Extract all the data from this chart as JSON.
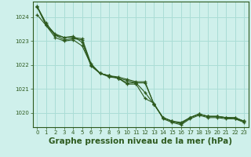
{
  "background_color": "#cff0eb",
  "grid_color": "#aaddd6",
  "line_color": "#2d5a1e",
  "xlabel": "Graphe pression niveau de la mer (hPa)",
  "xlabel_fontsize": 7.5,
  "ylim": [
    1019.4,
    1024.65
  ],
  "xlim": [
    -0.5,
    23.5
  ],
  "yticks": [
    1020,
    1021,
    1022,
    1023,
    1024
  ],
  "xticks": [
    0,
    1,
    2,
    3,
    4,
    5,
    6,
    7,
    8,
    9,
    10,
    11,
    12,
    13,
    14,
    15,
    16,
    17,
    18,
    19,
    20,
    21,
    22,
    23
  ],
  "series": [
    [
      1024.45,
      1023.75,
      1023.25,
      1023.05,
      1023.1,
      1023.05,
      1022.0,
      1021.65,
      1021.55,
      1021.45,
      1021.35,
      1021.25,
      1021.25,
      1020.35,
      1019.8,
      1019.65,
      1019.55,
      1019.8,
      1019.95,
      1019.85,
      1019.85,
      1019.8,
      1019.75,
      1019.65
    ],
    [
      1024.1,
      1023.65,
      1023.15,
      1023.0,
      1023.05,
      1022.8,
      1022.0,
      1021.65,
      1021.5,
      1021.45,
      1021.2,
      1021.2,
      1020.6,
      1020.4,
      1019.75,
      1019.6,
      1019.5,
      1019.75,
      1019.9,
      1019.8,
      1019.8,
      1019.75,
      1019.75,
      1019.6
    ],
    [
      1024.42,
      1023.65,
      1023.25,
      1023.15,
      1023.15,
      1023.1,
      1022.05,
      1021.65,
      1021.55,
      1021.5,
      1021.4,
      1021.3,
      1021.3,
      1020.35,
      1019.8,
      1019.65,
      1019.55,
      1019.8,
      1019.95,
      1019.85,
      1019.85,
      1019.8,
      1019.8,
      1019.65
    ],
    [
      1024.45,
      1023.7,
      1023.3,
      1023.15,
      1023.2,
      1022.95,
      1021.95,
      1021.65,
      1021.55,
      1021.45,
      1021.25,
      1021.25,
      1020.85,
      1020.35,
      1019.8,
      1019.65,
      1019.6,
      1019.8,
      1019.95,
      1019.85,
      1019.85,
      1019.8,
      1019.8,
      1019.65
    ]
  ]
}
